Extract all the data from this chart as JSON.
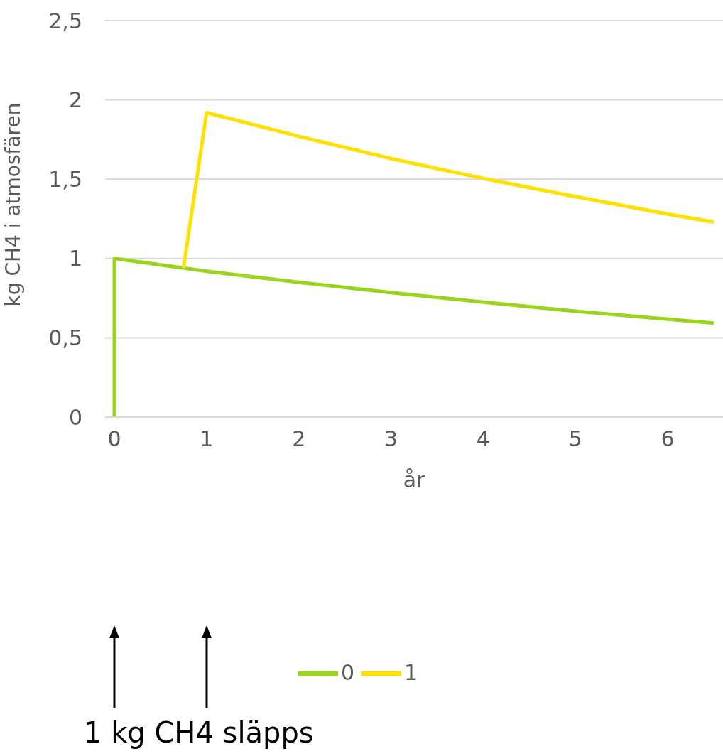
{
  "chart_data": {
    "type": "line",
    "xlabel": "år",
    "ylabel": "kg CH4 i atmosfären",
    "xlim": [
      -0.1,
      6.6
    ],
    "xticks": [
      0,
      1,
      2,
      3,
      4,
      5,
      6
    ],
    "ylim": [
      0,
      2.5
    ],
    "yticks": [
      {
        "value": 0,
        "label": "0"
      },
      {
        "value": 0.5,
        "label": "0,5"
      },
      {
        "value": 1,
        "label": "1"
      },
      {
        "value": 1.5,
        "label": "1,5"
      },
      {
        "value": 2,
        "label": "2"
      },
      {
        "value": 2.5,
        "label": "2,5"
      }
    ],
    "grid": "y",
    "legend": "bottom",
    "marker": "none",
    "line_style": "solid",
    "series": [
      {
        "name": "0",
        "color": "#99d41e",
        "x": [
          0,
          0,
          1,
          2,
          3,
          4,
          5,
          6,
          6.5
        ],
        "values": [
          0,
          1,
          0.92,
          0.85,
          0.785,
          0.725,
          0.668,
          0.617,
          0.593
        ]
      },
      {
        "name": "1",
        "color": "#ffe100",
        "x": [
          0.75,
          1,
          2,
          3,
          4,
          5,
          6,
          6.5
        ],
        "values": [
          0.94,
          1.92,
          1.77,
          1.63,
          1.505,
          1.39,
          1.28,
          1.23
        ]
      }
    ],
    "annotations": [
      {
        "text": "1 kg CH4 släpps"
      }
    ]
  }
}
